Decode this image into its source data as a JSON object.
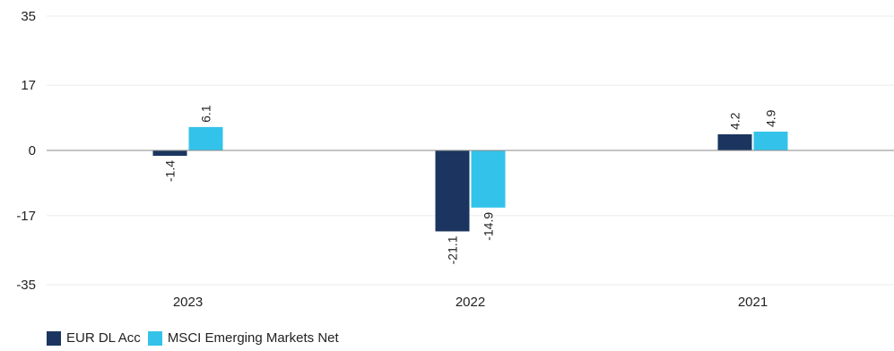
{
  "chart_data": {
    "type": "bar",
    "categories": [
      "2023",
      "2022",
      "2021"
    ],
    "series": [
      {
        "name": "EUR DL Acc",
        "values": [
          -1.4,
          -21.1,
          4.2
        ],
        "color": "#1b3560"
      },
      {
        "name": "MSCI Emerging Markets Net",
        "values": [
          6.1,
          -14.9,
          4.9
        ],
        "color": "#33c3ea"
      }
    ],
    "yticks": [
      35,
      17,
      0,
      -17,
      -35
    ],
    "ylim": [
      -35,
      35
    ],
    "grid": true,
    "legend_position": "bottom-left",
    "title": "",
    "xlabel": "",
    "ylabel": ""
  }
}
